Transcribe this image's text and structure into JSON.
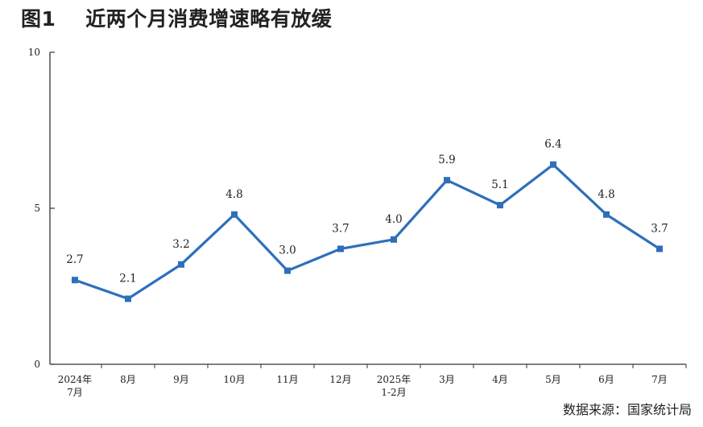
{
  "chart_data": {
    "type": "line",
    "title": "图1    近两个月消费增速略有放缓",
    "categories": [
      "2024年\n7月",
      "8月",
      "9月",
      "10月",
      "11月",
      "12月",
      "2025年\n1-2月",
      "3月",
      "4月",
      "5月",
      "6月",
      "7月"
    ],
    "series": [
      {
        "values": [
          2.7,
          2.1,
          3.2,
          4.8,
          3.0,
          3.7,
          4.0,
          5.9,
          5.1,
          6.4,
          4.8,
          3.7
        ]
      }
    ],
    "data_labels": [
      "2.7",
      "2.1",
      "3.2",
      "4.8",
      "3.0",
      "3.7",
      "4.0",
      "5.9",
      "5.1",
      "6.4",
      "4.8",
      "3.7"
    ],
    "yticks": [
      "0",
      "5",
      "10"
    ],
    "ylim": [
      0,
      10
    ],
    "grid": false,
    "line_color": "#2e6fba",
    "source": "数据来源：国家统计局"
  }
}
